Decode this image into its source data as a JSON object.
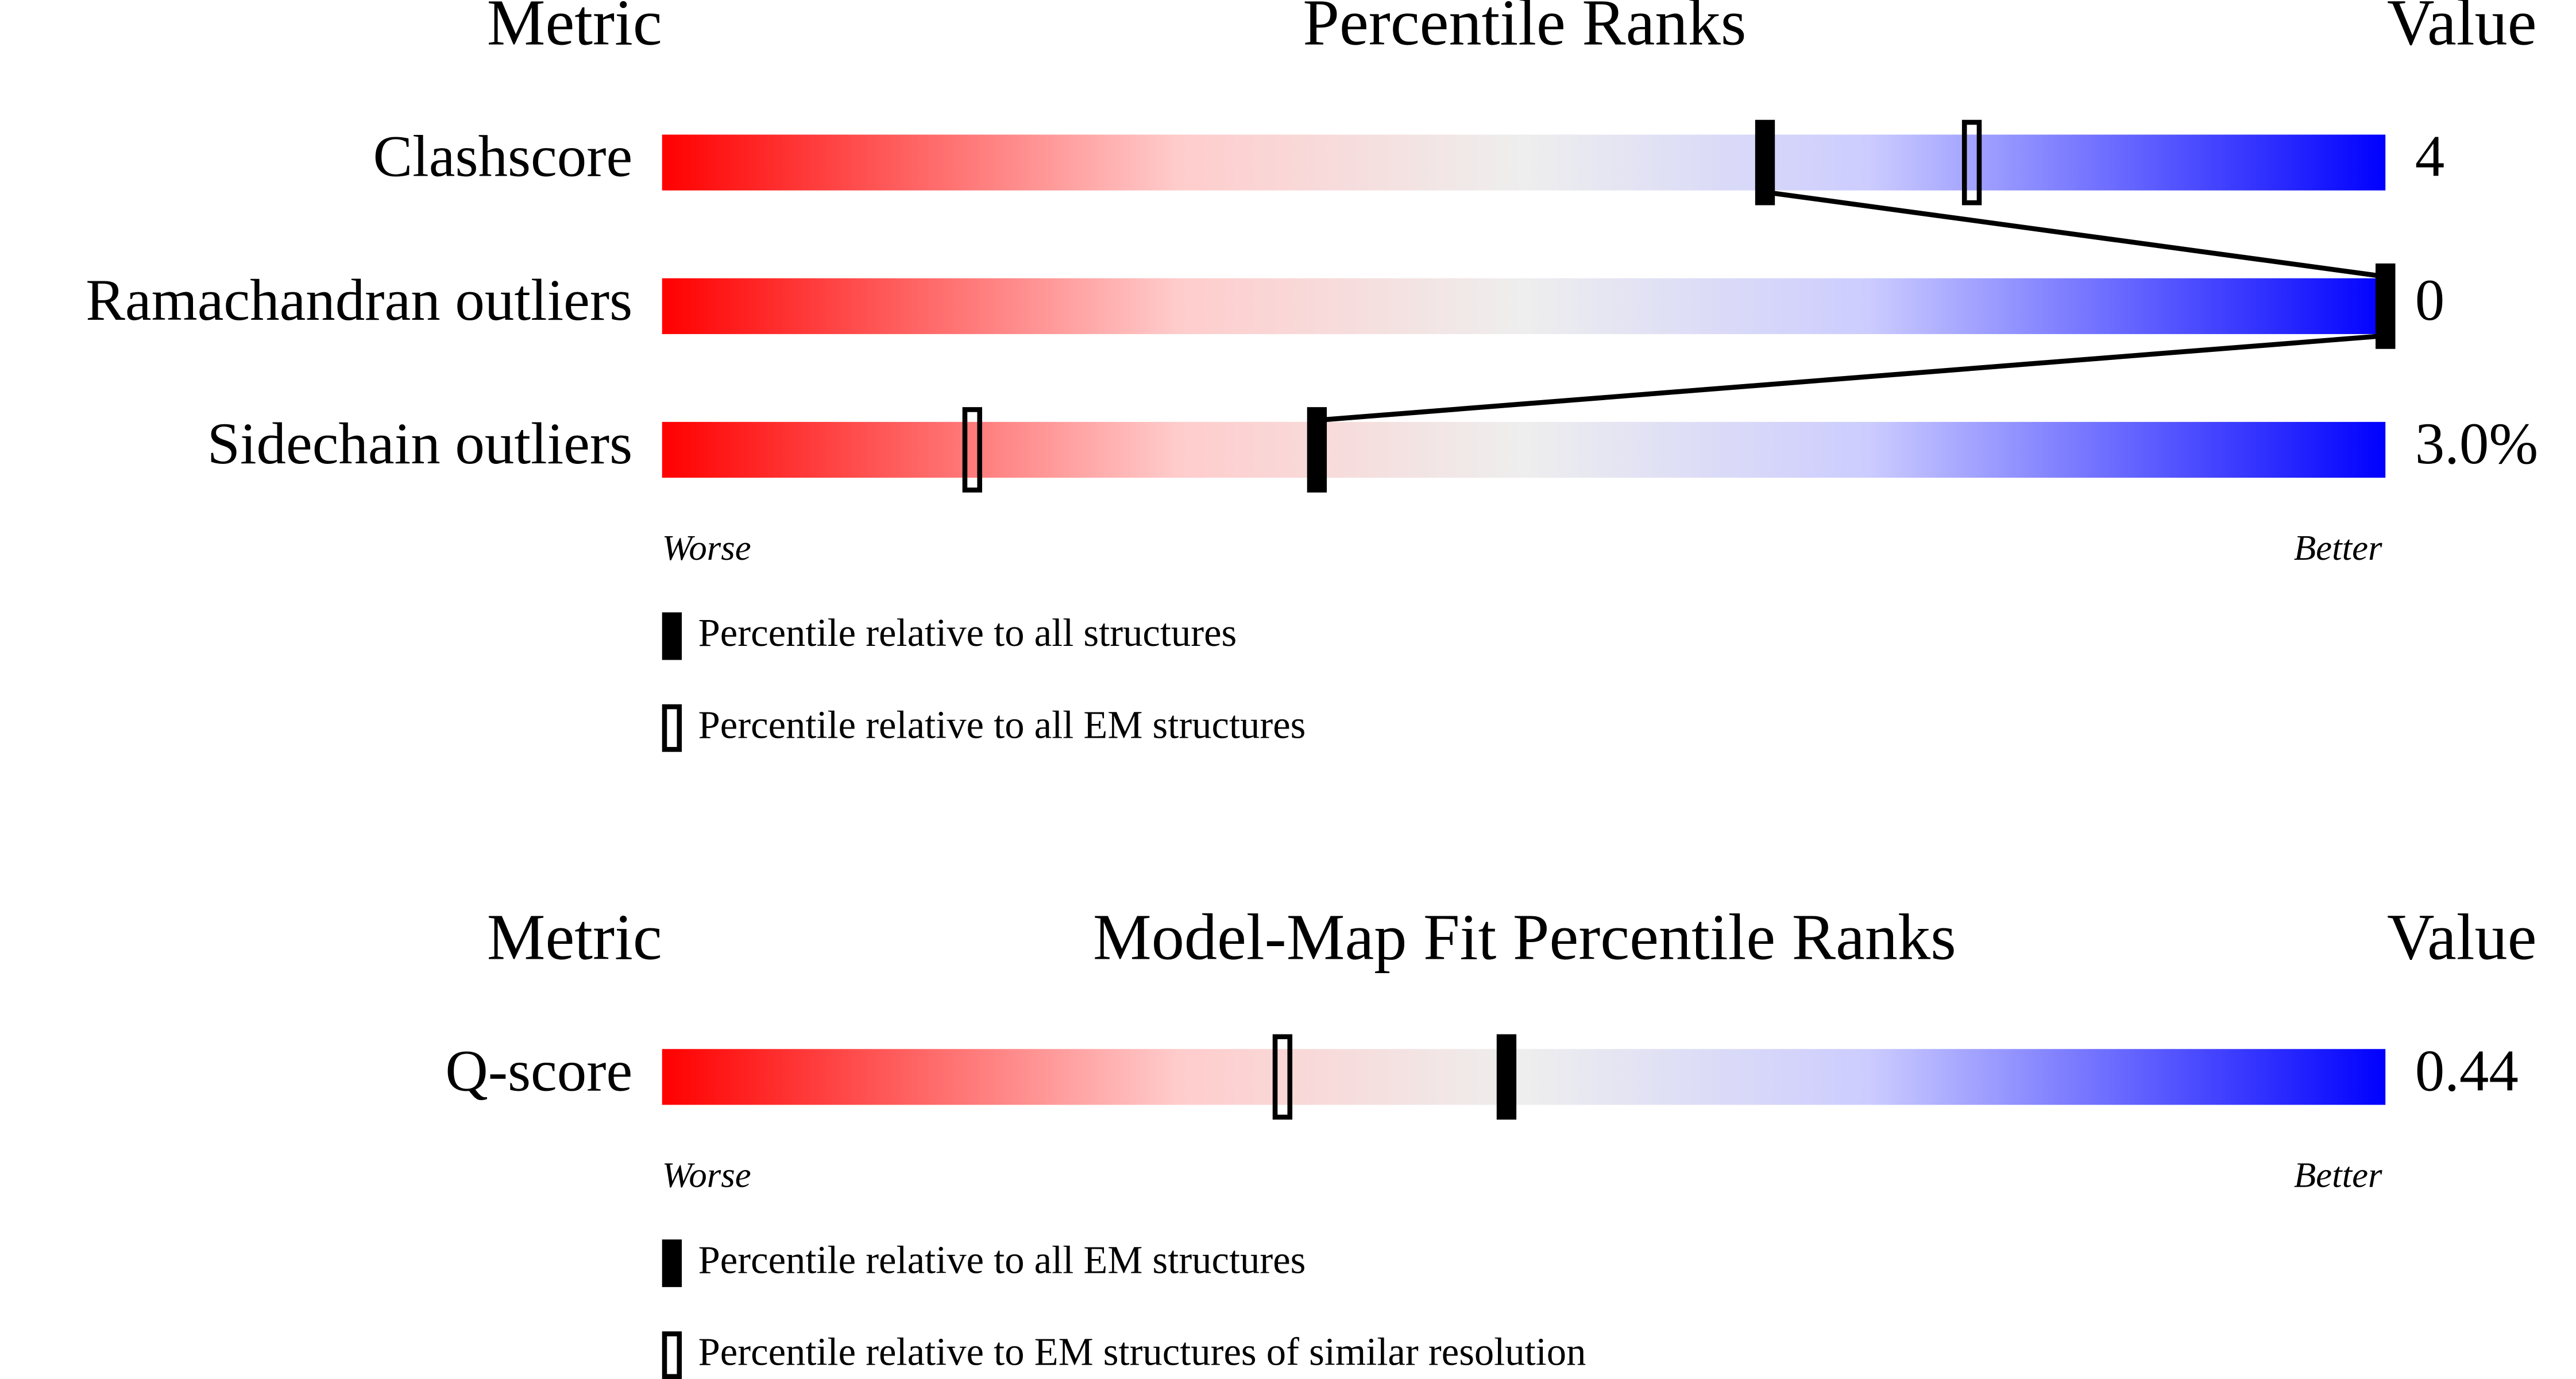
{
  "chart_data": [
    {
      "type": "slider",
      "title": "Percentile Ranks",
      "metric_header": "Metric",
      "value_header": "Value",
      "categories": [
        "Clashscore",
        "Ramachandran outliers",
        "Sidechain outliers"
      ],
      "values": [
        4,
        0,
        3.0
      ],
      "value_labels": [
        "4",
        "0",
        "3.0%"
      ],
      "series": [
        {
          "name": "Percentile relative to all structures",
          "color": "#000000",
          "fill": true,
          "values": [
            64,
            100,
            38
          ]
        },
        {
          "name": "Percentile relative to all EM structures",
          "color": "#000000",
          "fill": false,
          "values": [
            76,
            100,
            18
          ]
        }
      ],
      "xlim": [
        0,
        100
      ],
      "low_label": "Worse",
      "high_label": "Better"
    },
    {
      "type": "slider",
      "title": "Model-Map Fit Percentile Ranks",
      "metric_header": "Metric",
      "value_header": "Value",
      "categories": [
        "Q-score"
      ],
      "values": [
        0.44
      ],
      "value_labels": [
        "0.44"
      ],
      "series": [
        {
          "name": "Percentile relative to all EM structures",
          "color": "#000000",
          "fill": true,
          "values": [
            49
          ]
        },
        {
          "name": "Percentile relative to EM structures of similar resolution",
          "color": "#000000",
          "fill": false,
          "values": [
            36
          ]
        }
      ],
      "xlim": [
        0,
        100
      ],
      "low_label": "Worse",
      "high_label": "Better"
    }
  ]
}
